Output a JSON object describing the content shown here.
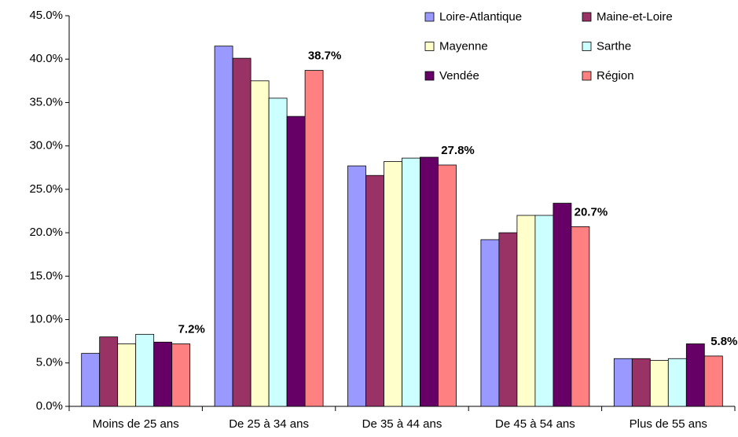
{
  "chart_data": {
    "type": "bar",
    "categories": [
      "Moins de  25 ans",
      "De 25 à 34 ans",
      "De 35 à 44 ans",
      "De 45 à 54 ans",
      "Plus de 55 ans"
    ],
    "series": [
      {
        "name": "Loire-Atlantique",
        "color": "#9999ff",
        "values": [
          6.1,
          41.5,
          27.7,
          19.2,
          5.5
        ]
      },
      {
        "name": "Maine-et-Loire",
        "color": "#993366",
        "values": [
          8.0,
          40.1,
          26.6,
          20.0,
          5.5
        ]
      },
      {
        "name": "Mayenne",
        "color": "#ffffcc",
        "values": [
          7.2,
          37.5,
          28.2,
          22.0,
          5.3
        ]
      },
      {
        "name": "Sarthe",
        "color": "#ccffff",
        "values": [
          8.3,
          35.5,
          28.6,
          22.0,
          5.5
        ]
      },
      {
        "name": "Vendée",
        "color": "#660066",
        "values": [
          7.4,
          33.4,
          28.7,
          23.4,
          7.2
        ]
      },
      {
        "name": "Région",
        "color": "#ff8080",
        "values": [
          7.2,
          38.7,
          27.8,
          20.7,
          5.8
        ],
        "value_labels": [
          "7.2%",
          "38.7%",
          "27.8%",
          "20.7%",
          "5.8%"
        ]
      }
    ],
    "ylim": [
      0,
      45
    ],
    "yticks": [
      {
        "value": 0,
        "label": "0.0%"
      },
      {
        "value": 5,
        "label": "5.0%"
      },
      {
        "value": 10,
        "label": "10.0%"
      },
      {
        "value": 15,
        "label": "15.0%"
      },
      {
        "value": 20,
        "label": "20.0%"
      },
      {
        "value": 25,
        "label": "25.0%"
      },
      {
        "value": 30,
        "label": "30.0%"
      },
      {
        "value": 35,
        "label": "35.0%"
      },
      {
        "value": 40,
        "label": "40.0%"
      },
      {
        "value": 45,
        "label": "45.0%"
      }
    ],
    "grid": false,
    "legend": "top-right"
  }
}
